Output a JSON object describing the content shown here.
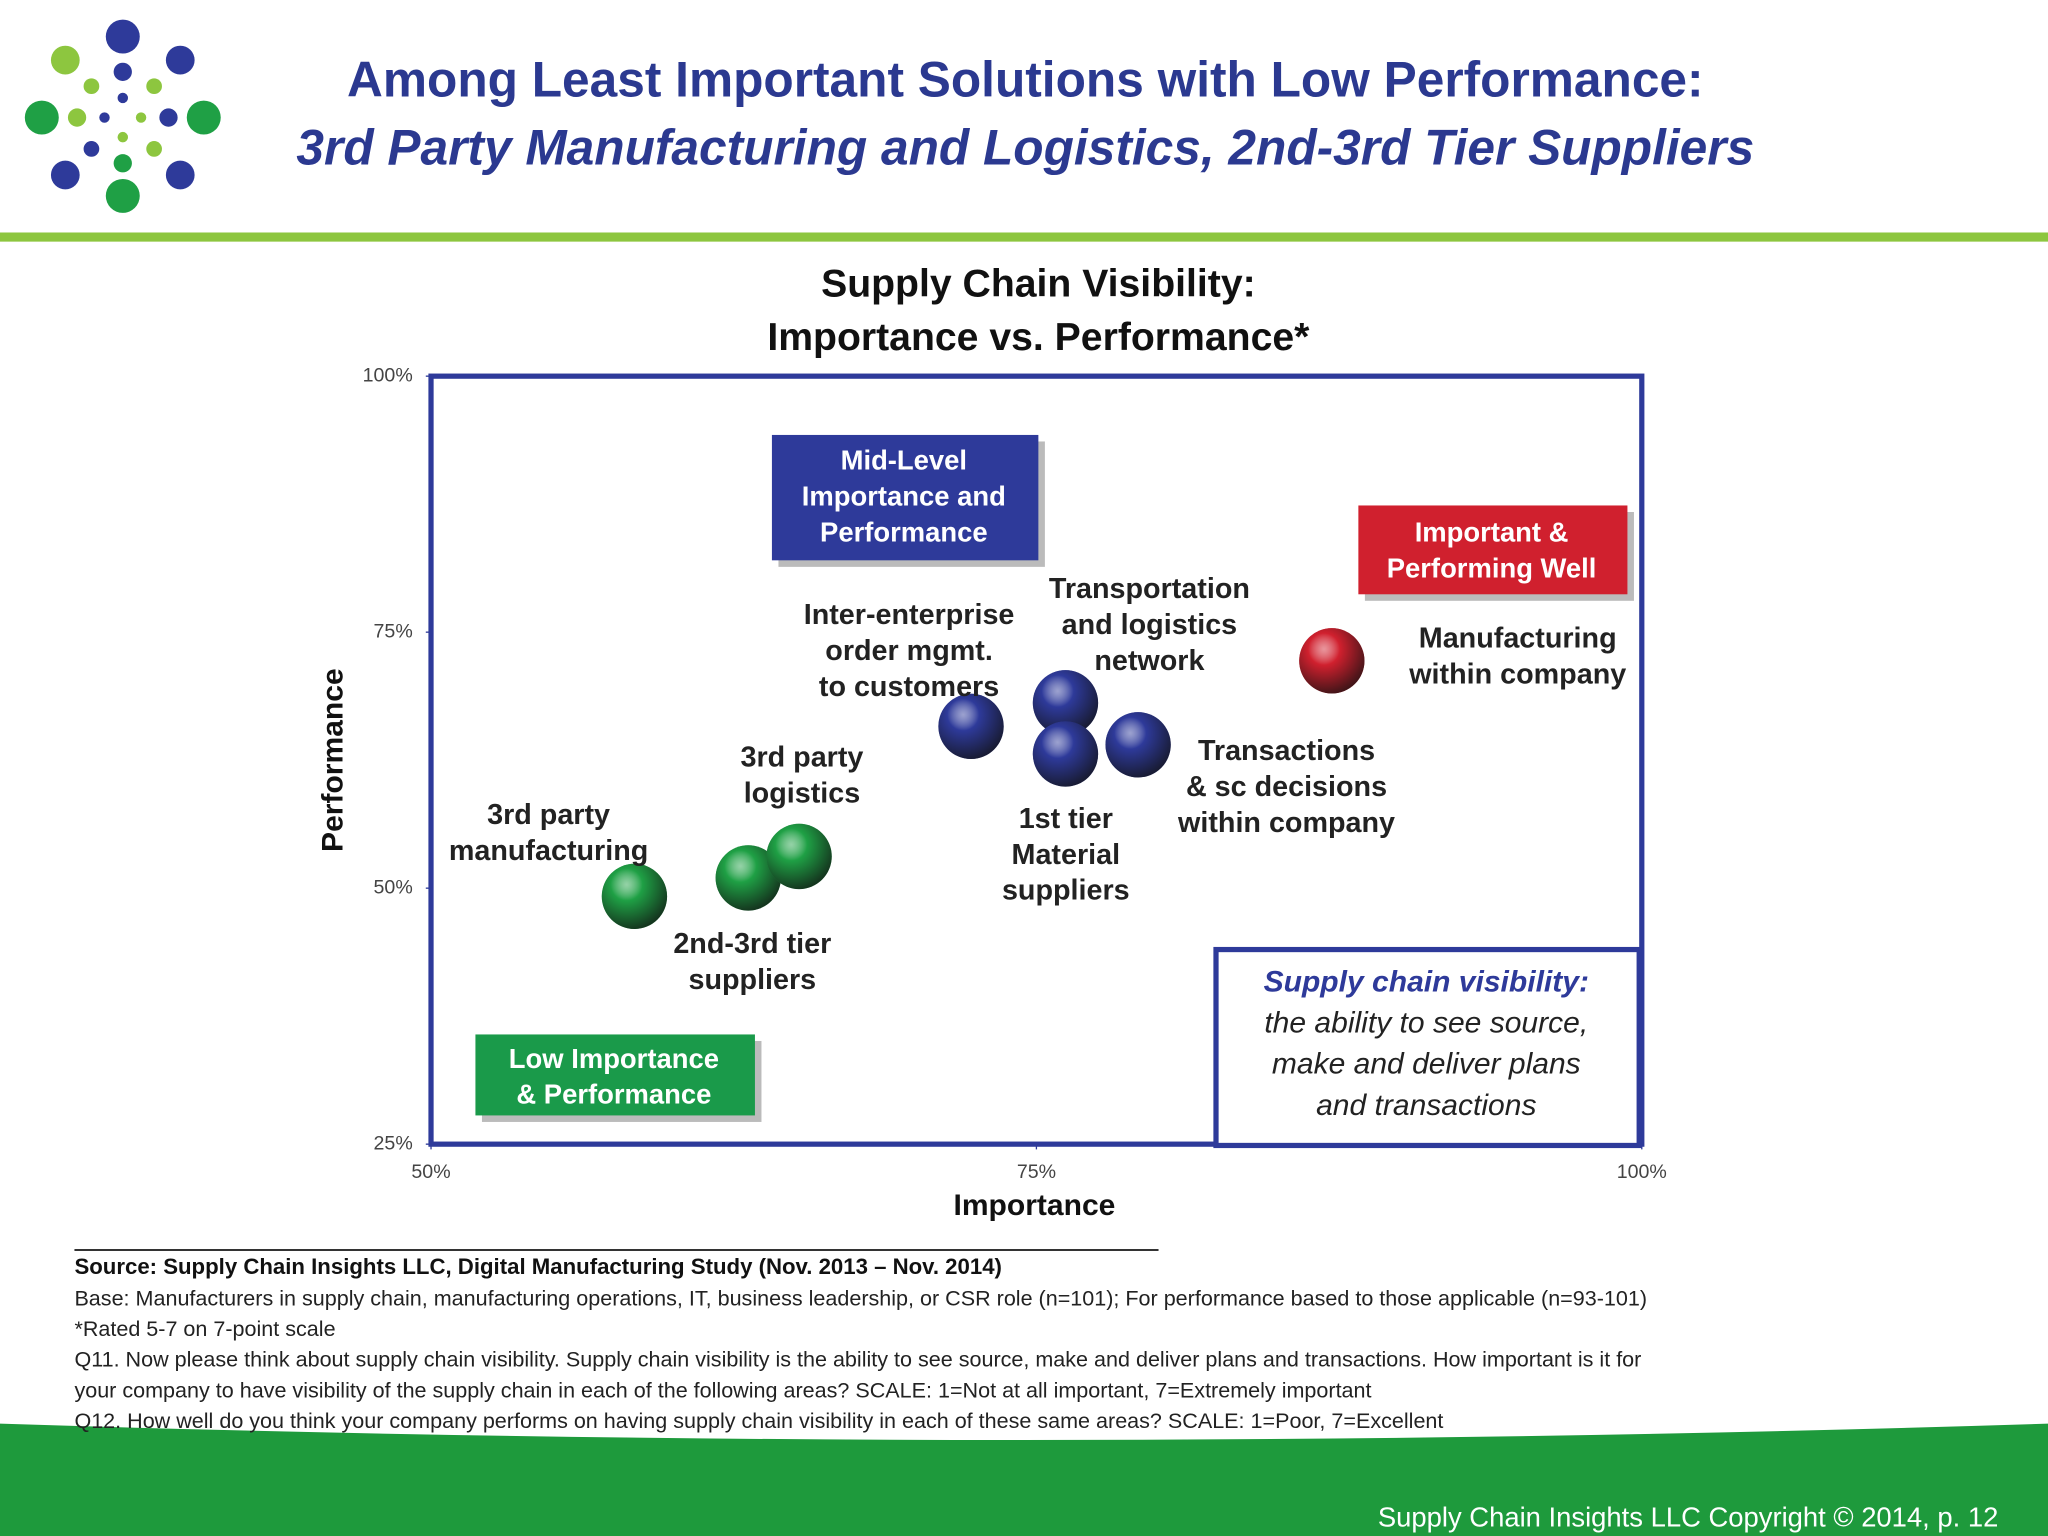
{
  "header": {
    "title_line1": "Among Least Important Solutions with Low Performance:",
    "title_line2": "3rd Party Manufacturing and Logistics, 2nd-3rd Tier Suppliers"
  },
  "chart_data": {
    "type": "scatter",
    "title": [
      "Supply Chain Visibility:",
      "Importance vs. Performance*"
    ],
    "x_label": "Importance",
    "y_label": "Performance",
    "xlim": [
      50,
      100
    ],
    "ylim": [
      25,
      100
    ],
    "xticks": [
      {
        "value": 50,
        "label": "50%"
      },
      {
        "value": 75,
        "label": "75%"
      },
      {
        "value": 100,
        "label": "100%"
      }
    ],
    "yticks": [
      {
        "value": 25,
        "label": "25%"
      },
      {
        "value": 50,
        "label": "50%"
      },
      {
        "value": 75,
        "label": "75%"
      },
      {
        "value": 100,
        "label": "100%"
      }
    ],
    "points": [
      {
        "label": [
          "3rd party",
          "manufacturing"
        ],
        "x": 58.4,
        "y": 49.2,
        "color": "#1fa045"
      },
      {
        "label": [
          "2nd-3rd tier",
          "suppliers"
        ],
        "x": 63.1,
        "y": 51.0,
        "color": "#1fa045"
      },
      {
        "label": [
          "3rd party",
          "logistics"
        ],
        "x": 65.2,
        "y": 53.1,
        "color": "#1fa045"
      },
      {
        "label": [
          "Inter-enterprise",
          "order mgmt.",
          "to customers"
        ],
        "x": 72.3,
        "y": 65.8,
        "color": "#2e3a9a"
      },
      {
        "label": [
          "Transportation",
          "and logistics",
          "network"
        ],
        "x": 76.2,
        "y": 68.1,
        "color": "#2e3a9a"
      },
      {
        "label": [
          "1st tier",
          "Material",
          "suppliers"
        ],
        "x": 76.2,
        "y": 63.1,
        "color": "#2e3a9a"
      },
      {
        "label": [
          "Transactions",
          "& sc decisions",
          "within company"
        ],
        "x": 79.2,
        "y": 64.0,
        "color": "#2e3a9a"
      },
      {
        "label": [
          "Manufacturing",
          "within company"
        ],
        "x": 87.2,
        "y": 72.2,
        "color": "#d0202e"
      }
    ],
    "annotations": [
      {
        "lines": [
          "Mid-Level",
          "Importance  and",
          "Performance"
        ],
        "color": "#2e3a9a"
      },
      {
        "lines": [
          "Important &",
          "Performing Well"
        ],
        "color": "#d0202e"
      },
      {
        "lines": [
          "Low Importance",
          "& Performance"
        ],
        "color": "#1a9a4a"
      }
    ],
    "definition": [
      "Supply chain visibility:",
      "the ability to see source,",
      "make and deliver plans",
      "and transactions"
    ]
  },
  "footer": {
    "source": "Source:  Supply Chain Insights LLC, Digital Manufacturing Study (Nov. 2013 – Nov. 2014)",
    "notes": [
      "Base: Manufacturers in supply chain, manufacturing operations, IT, business leadership, or CSR role (n=101); For performance based to those applicable (n=93-101)",
      "*Rated 5-7 on 7-point scale",
      "Q11. Now please think about supply chain visibility.  Supply chain visibility is the ability to see source, make and deliver plans and transactions. How important is it for",
      "your company to have visibility of the supply chain in each of the following areas? SCALE: 1=Not at all important, 7=Extremely important",
      "Q12. How well do you think your company performs on having supply chain visibility in each of these same areas? SCALE: 1=Poor, 7=Excellent"
    ],
    "copyright": "Supply Chain Insights LLC Copyright © 2014, p. 12"
  }
}
